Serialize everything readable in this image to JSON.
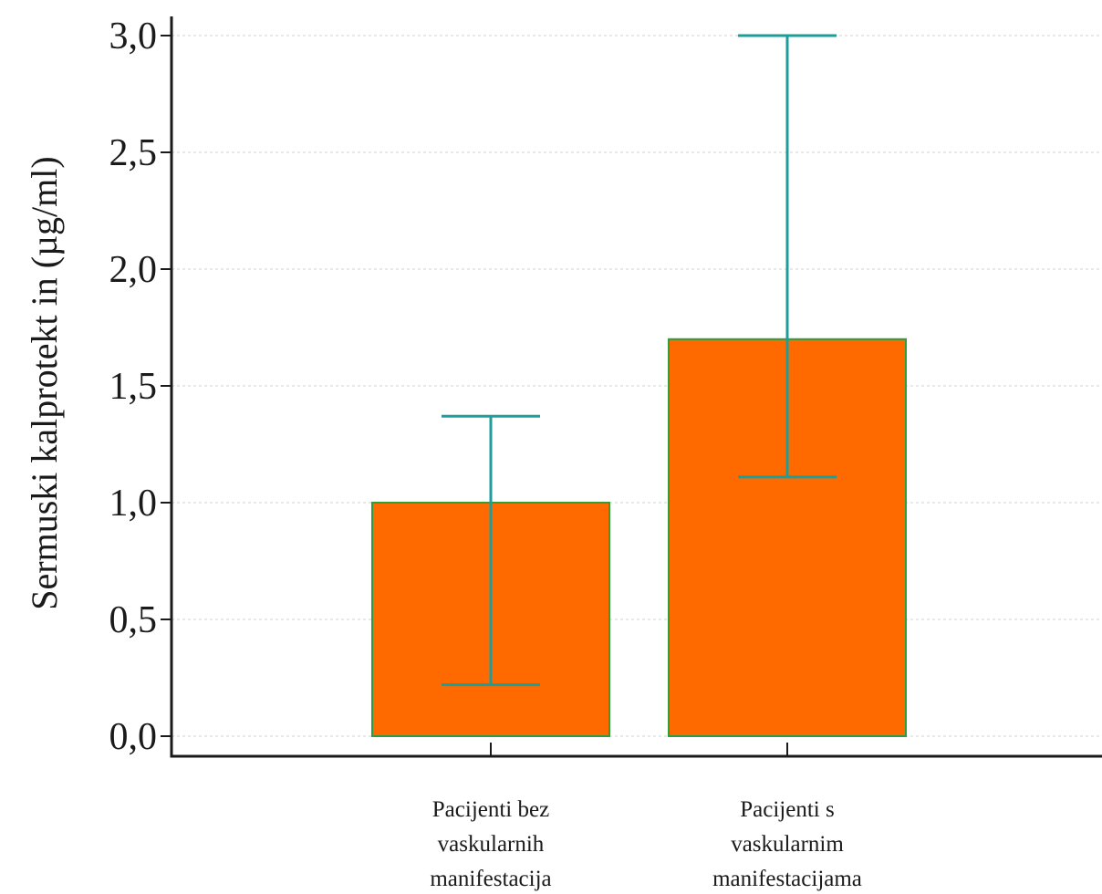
{
  "chart_data": {
    "type": "bar",
    "categories": [
      [
        "Pacijenti bez",
        "vaskularnih",
        "manifestacija"
      ],
      [
        "Pacijenti s",
        "vaskularnim",
        "manifestacijama"
      ]
    ],
    "values": [
      1.0,
      1.7
    ],
    "error_low": [
      0.22,
      1.11
    ],
    "error_high": [
      1.37,
      3.0
    ],
    "title": "",
    "xlabel": "",
    "ylabel": "Sermuski kalprotekt in (µg/ml)",
    "ylim": [
      0,
      3.0
    ],
    "yticks": [
      0,
      0.5,
      1.0,
      1.5,
      2.0,
      2.5,
      3.0
    ],
    "ytick_labels": [
      "0,0",
      "0,5",
      "1,0",
      "1,5",
      "2,0",
      "2,5",
      "3,0"
    ],
    "grid": "horizontal dashed",
    "bar_color": "#ff6a00",
    "bar_edge_color": "#2e9e3a",
    "errorbar_color": "#1e9e9a",
    "axis_color": "#1a1a1a"
  }
}
